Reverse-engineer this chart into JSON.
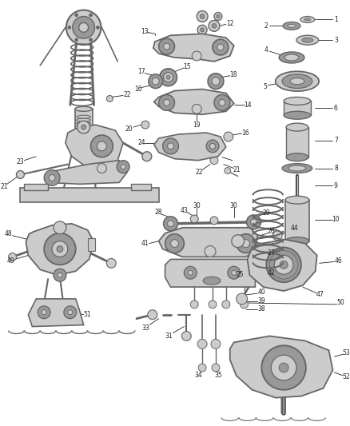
{
  "bg_color": "#ffffff",
  "fig_width": 4.38,
  "fig_height": 5.33,
  "dpi": 100,
  "line_color": "#222222",
  "gray1": "#999999",
  "gray2": "#cccccc",
  "gray3": "#666666",
  "gray4": "#444444",
  "gray5": "#bbbbbb"
}
